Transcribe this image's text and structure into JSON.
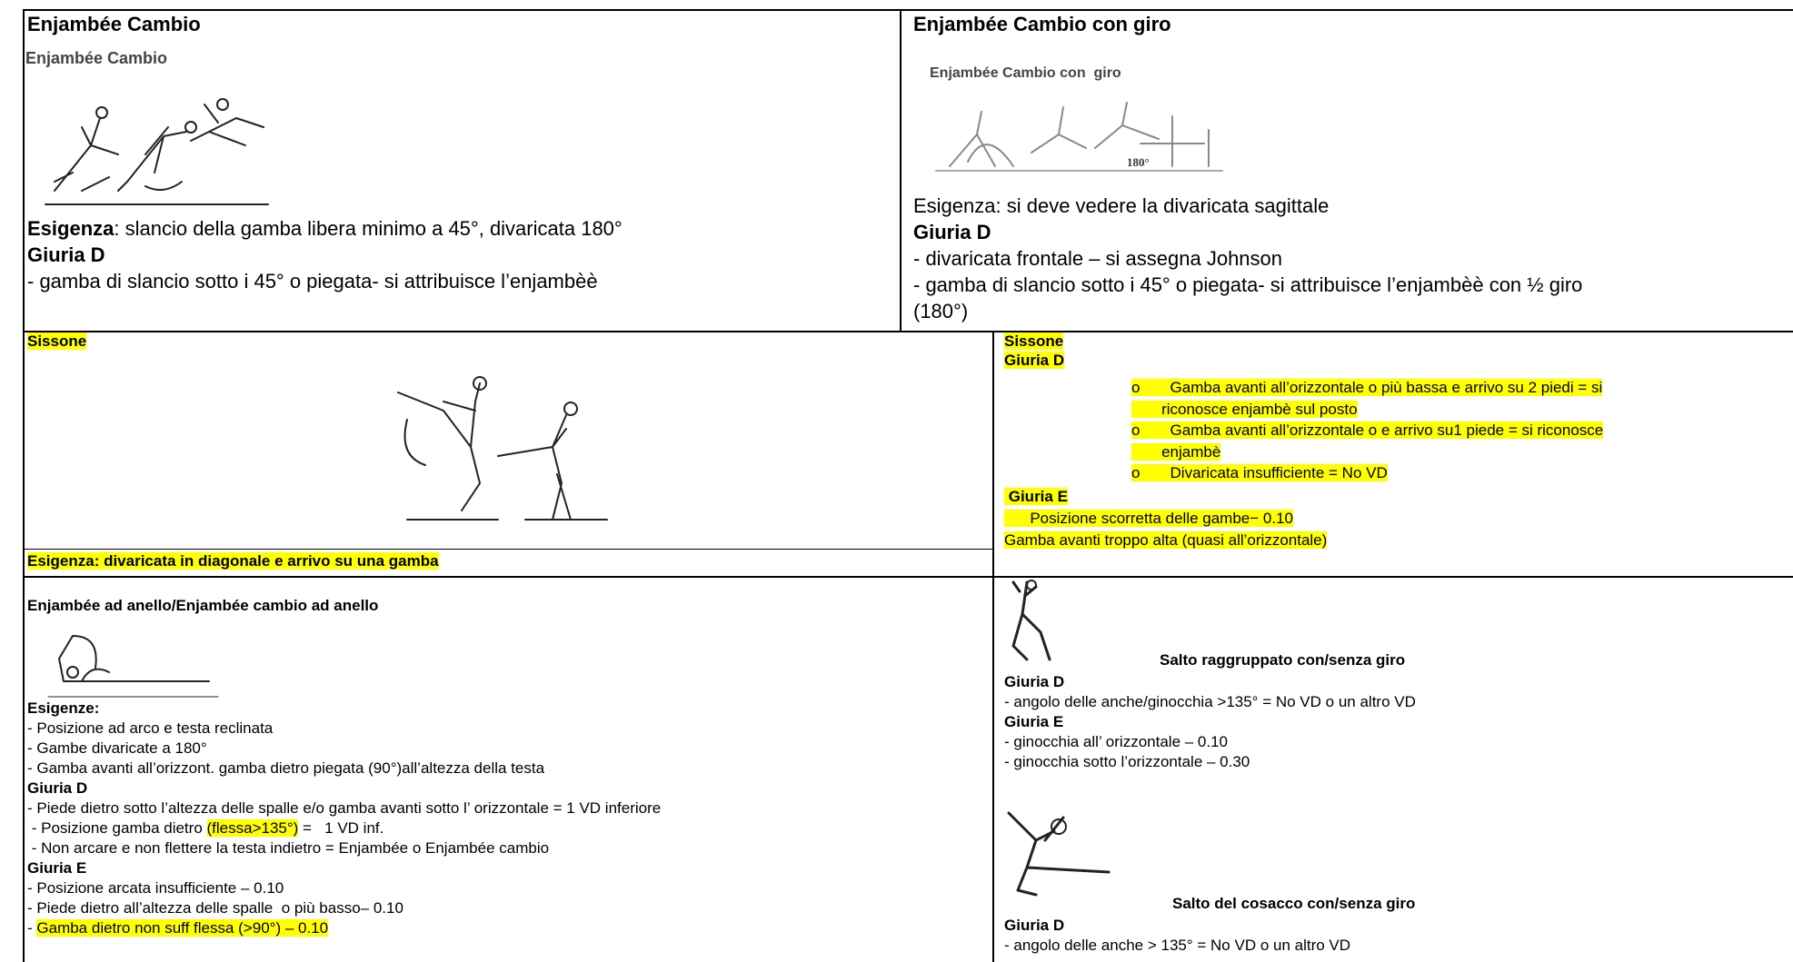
{
  "row1": {
    "left": {
      "title": "Enjambée Cambio",
      "figure_caption": "Enjambée Cambio",
      "requirement_label": "Esigenza",
      "requirement_text": ": slancio della gamba libera minimo a 45°, divaricata 180°",
      "jury_d": "Giuria D",
      "lines": [
        "- gamba di slancio sotto i 45° o piegata- si attribuisce l’enjambèè"
      ]
    },
    "right": {
      "title": "Enjambée Cambio con giro",
      "figure_caption": "Enjambée Cambio con  giro",
      "figure_angle": "180°",
      "requirement": "Esigenza: si deve vedere la divaricata sagittale",
      "jury_d": "Giuria D",
      "lines": [
        "- divaricata frontale – si assegna Johnson",
        "- gamba di slancio sotto i 45° o piegata- si attribuisce l’enjambèè con ½ giro",
        "(180°)"
      ]
    }
  },
  "row2": {
    "left": {
      "title": "Sissone",
      "requirement": "Esigenza: divaricata in diagonale e arrivo su una gamba"
    },
    "right": {
      "title": "Sissone",
      "jury_d": "Giuria D",
      "bullet_mark": "o",
      "bullets": [
        [
          "Gamba avanti all’orizzontale o più bassa e arrivo su 2 piedi = si",
          "riconosce enjambè sul posto"
        ],
        [
          "Gamba avanti all’orizzontale o e arrivo su1 piede = si riconosce",
          "enjambè"
        ],
        [
          "Divaricata insufficiente = No VD"
        ]
      ],
      "jury_e": "Giuria E",
      "jury_e_lines": [
        "Posizione scorretta delle gambe− 0.10",
        "Gamba avanti troppo alta (quasi all’orizzontale)"
      ]
    }
  },
  "row3": {
    "left": {
      "title": "Enjambée ad anello/Enjambée cambio ad anello",
      "requirements_label": "Esigenze:",
      "requirements": [
        "- Posizione ad arco e testa reclinata",
        "- Gambe divaricate a 180°",
        "- Gamba avanti all’orizzont. gamba dietro piegata (90°)all’altezza della testa"
      ],
      "jury_d": "Giuria D",
      "jury_d_lines": [
        [
          "- Piede dietro sotto l’altezza delle spalle e/o gamba avanti sotto l’ orizzontale = 1 VD inferiore"
        ],
        [
          " - Posizione gamba dietro ",
          "(flessa>135°)",
          " =   1 VD inf."
        ],
        [
          " - Non arcare e non flettere la testa indietro = Enjambée o Enjambée cambio"
        ]
      ],
      "jury_e": "Giuria E",
      "jury_e_lines": [
        [
          "- Posizione arcata insufficiente – 0.10"
        ],
        [
          "- Piede dietro all’altezza delle spalle  o più basso– 0.10"
        ],
        [
          "- ",
          "Gamba dietro non suff flessa (>90°) – 0.10"
        ]
      ]
    },
    "right": {
      "jumps": [
        {
          "name": "Salto raggruppato con/senza giro",
          "jury_d": "Giuria D",
          "jury_d_lines": [
            "- angolo delle anche/ginocchia >135° = No VD o un altro VD"
          ],
          "jury_e": "Giuria E",
          "jury_e_lines": [
            "- ginocchia all’ orizzontale – 0.10",
            "- ginocchia sotto l’orizzontale – 0.30"
          ]
        },
        {
          "name": "Salto del cosacco con/senza giro",
          "jury_d": "Giuria D",
          "jury_d_lines": [
            "- angolo delle anche > 135° = No VD o un altro VD"
          ]
        }
      ]
    }
  }
}
